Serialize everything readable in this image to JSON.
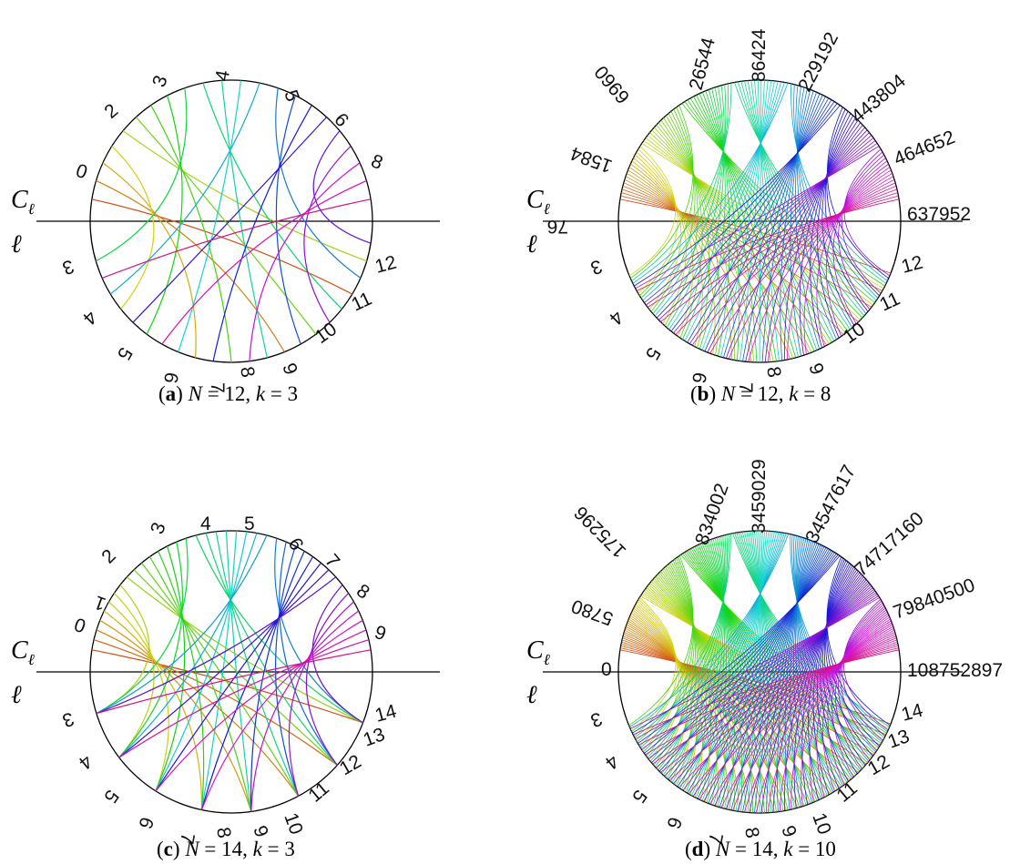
{
  "panels": [
    {
      "id": "a",
      "caption": {
        "letter": "a",
        "n_text": "N",
        "n_value": "12",
        "k_text": "k",
        "k_value": "3"
      },
      "curve_label": "C",
      "curve_sub": "ℓ",
      "line_label": "ℓ",
      "top_labels": [
        "0",
        "2",
        "3",
        "4",
        "5",
        "6",
        "8",
        "12"
      ],
      "bottom_labels": [
        "3",
        "4",
        "5",
        "6",
        "7",
        "8",
        "9",
        "10",
        "11"
      ],
      "chord_count": 22
    },
    {
      "id": "b",
      "caption": {
        "letter": "b",
        "n_text": "N",
        "n_value": "12",
        "k_text": "k",
        "k_value": "8"
      },
      "curve_label": "C",
      "curve_sub": "ℓ",
      "line_label": "ℓ",
      "top_labels": [
        "76",
        "1584",
        "6960",
        "26544",
        "86424",
        "229192",
        "443804",
        "464652",
        "637952"
      ],
      "bottom_labels": [
        "3",
        "4",
        "5",
        "6",
        "7",
        "8",
        "9",
        "10",
        "11",
        "12"
      ],
      "chord_count": 120
    },
    {
      "id": "c",
      "caption": {
        "letter": "c",
        "n_text": "N",
        "n_value": "14",
        "k_text": "k",
        "k_value": "3"
      },
      "curve_label": "C",
      "curve_sub": "ℓ",
      "line_label": "ℓ",
      "top_labels": [
        "0",
        "1",
        "2",
        "3",
        "4",
        "5",
        "6",
        "7",
        "8",
        "9",
        "14"
      ],
      "bottom_labels": [
        "3",
        "4",
        "5",
        "6",
        "7",
        "8",
        "9",
        "10",
        "11",
        "12",
        "13"
      ],
      "chord_count": 40
    },
    {
      "id": "d",
      "caption": {
        "letter": "d",
        "n_text": "N",
        "n_value": "14",
        "k_text": "k",
        "k_value": "10"
      },
      "curve_label": "C",
      "curve_sub": "ℓ",
      "line_label": "ℓ",
      "top_labels": [
        "0",
        "5780",
        "175296",
        "834002",
        "3459029",
        "34547617",
        "74717160",
        "79840500",
        "108752897"
      ],
      "bottom_labels": [
        "3",
        "4",
        "5",
        "6",
        "7",
        "8",
        "9",
        "10",
        "11",
        "12",
        "13",
        "14"
      ],
      "chord_count": 200
    }
  ],
  "colors": {
    "circle": "#000000",
    "line": "#000000"
  }
}
